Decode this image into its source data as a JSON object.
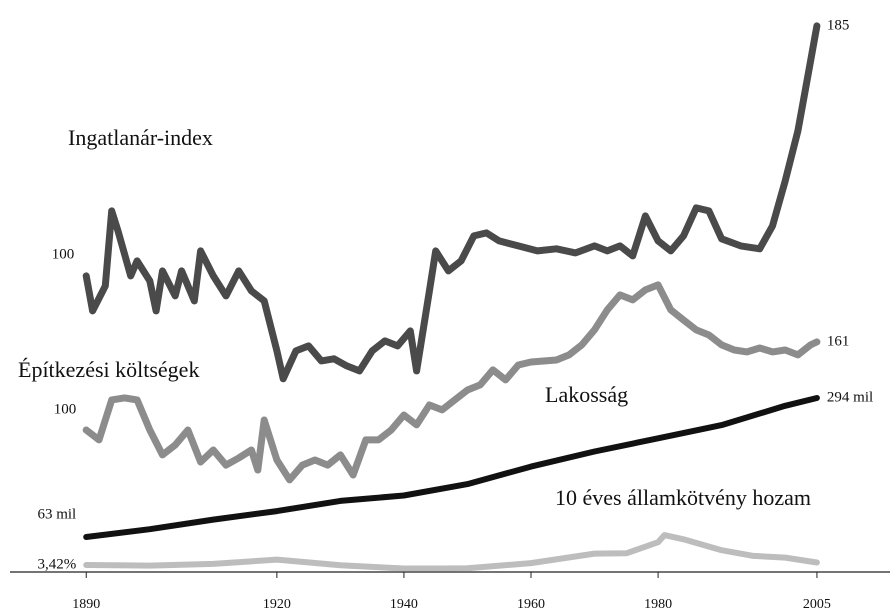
{
  "chart_data": {
    "type": "line",
    "xlim": [
      1878,
      2016.5
    ],
    "xticks": [
      1890,
      1920,
      1940,
      1960,
      1980,
      2005
    ],
    "series": [
      {
        "name": "Ingatlanár-index",
        "color": "#4a4a4a",
        "ylim": [
          0,
          187
        ],
        "x": [
          1890,
          1891,
          1893,
          1894,
          1895,
          1897,
          1898,
          1900,
          1901,
          1902,
          1904,
          1905,
          1907,
          1908,
          1910,
          1912,
          1914,
          1916,
          1918,
          1920,
          1921,
          1923,
          1925,
          1927,
          1929,
          1931,
          1933,
          1935,
          1937,
          1939,
          1941,
          1942,
          1944,
          1945,
          1947,
          1949,
          1951,
          1953,
          1955,
          1958,
          1961,
          1964,
          1967,
          1970,
          1972,
          1974,
          1976,
          1978,
          1980,
          1982,
          1984,
          1986,
          1988,
          1990,
          1993,
          1996,
          1998,
          2000,
          2002,
          2004,
          2005
        ],
        "values": [
          100,
          88.1,
          96.6,
          122.1,
          115.3,
          100,
          105.1,
          98.3,
          88.1,
          101.7,
          93.2,
          101.7,
          91.5,
          108.5,
          100,
          93.2,
          101.7,
          94.9,
          91.5,
          74.5,
          65.0,
          74.5,
          76.2,
          71.1,
          71.8,
          69.4,
          67.7,
          74.5,
          77.9,
          76.2,
          81.3,
          67.7,
          94.9,
          108.5,
          101.7,
          105.1,
          113.6,
          114.6,
          111.9,
          110.2,
          108.5,
          109.2,
          107.8,
          110.2,
          108.5,
          110.2,
          106.8,
          120.4,
          111.9,
          108.5,
          113.6,
          123.1,
          122.1,
          112.6,
          110.2,
          109.2,
          117.0,
          132.3,
          149.3,
          173.1,
          185
        ],
        "value_labels": [
          "100",
          null,
          null,
          null,
          null,
          null,
          null,
          null,
          null,
          null,
          null,
          null,
          null,
          null,
          null,
          null,
          null,
          null,
          null,
          null,
          null,
          null,
          null,
          null,
          null,
          null,
          null,
          null,
          null,
          null,
          null,
          null,
          null,
          null,
          null,
          null,
          null,
          null,
          null,
          null,
          null,
          null,
          null,
          null,
          null,
          null,
          null,
          null,
          null,
          null,
          null,
          null,
          null,
          null,
          null,
          null,
          null,
          null,
          null,
          null,
          "185"
        ]
      },
      {
        "name": "Építkezési költségek",
        "color": "#8c8c8c",
        "ylim": [
          3,
          384
        ],
        "x": [
          1890,
          1892,
          1894,
          1896,
          1898,
          1900,
          1902,
          1904,
          1906,
          1908,
          1910,
          1912,
          1914,
          1916,
          1917,
          1918,
          1920,
          1922,
          1924,
          1926,
          1928,
          1930,
          1932,
          1934,
          1936,
          1938,
          1940,
          1942,
          1944,
          1946,
          1948,
          1950,
          1952,
          1954,
          1956,
          1958,
          1960,
          1964,
          1966,
          1968,
          1970,
          1972,
          1974,
          1976,
          1978,
          1980,
          1982,
          1984,
          1986,
          1988,
          1990,
          1992,
          1994,
          1996,
          1998,
          2000,
          2002,
          2004,
          2005
        ],
        "values": [
          100,
          93.1,
          120.8,
          122.2,
          120.8,
          100,
          82.7,
          89.6,
          100,
          77.8,
          86.1,
          75.7,
          80.6,
          86.1,
          72.3,
          106.9,
          79.2,
          65.4,
          75.7,
          79.2,
          75.7,
          82.7,
          68.8,
          93.1,
          93.1,
          100,
          110.4,
          103.5,
          117.3,
          113.9,
          120.8,
          127.7,
          131.2,
          141.6,
          134.7,
          145.0,
          147.1,
          148.5,
          152.0,
          158.9,
          169.3,
          183.2,
          193.6,
          190.1,
          197.0,
          200.5,
          183.2,
          176.2,
          169.3,
          165.8,
          158.9,
          155.4,
          154.1,
          156.8,
          154.1,
          155.4,
          152.0,
          158.9,
          161
        ],
        "value_labels": [
          "100",
          null,
          null,
          null,
          null,
          null,
          null,
          null,
          null,
          null,
          null,
          null,
          null,
          null,
          null,
          null,
          null,
          null,
          null,
          null,
          null,
          null,
          null,
          null,
          null,
          null,
          null,
          null,
          null,
          null,
          null,
          null,
          null,
          null,
          null,
          null,
          null,
          null,
          null,
          null,
          null,
          null,
          null,
          null,
          null,
          null,
          null,
          null,
          null,
          null,
          null,
          null,
          null,
          null,
          null,
          null,
          null,
          null,
          "161"
        ]
      },
      {
        "name": "Lakosság",
        "color": "#111111",
        "ylim": [
          8.2,
          922
        ],
        "x": [
          1890,
          1900,
          1910,
          1920,
          1930,
          1940,
          1950,
          1960,
          1970,
          1980,
          1990,
          2000,
          2005
        ],
        "values": [
          63,
          76,
          92,
          106,
          123,
          132,
          151,
          180,
          205,
          227,
          249,
          281,
          294
        ],
        "value_labels": [
          "63 mil",
          null,
          null,
          null,
          null,
          null,
          null,
          null,
          null,
          null,
          null,
          null,
          "294 mil"
        ]
      },
      {
        "name": "10 éves államkötvény hozam",
        "color": "#bdbdbd",
        "ylim": [
          1.67,
          194.2
        ],
        "x": [
          1890,
          1900,
          1910,
          1920,
          1930,
          1940,
          1946,
          1950,
          1960,
          1970,
          1975,
          1980,
          1981,
          1984,
          1990,
          1995,
          2000,
          2005
        ],
        "values": [
          3.42,
          3.2,
          3.8,
          5.3,
          3.3,
          2.2,
          2.2,
          2.3,
          4.1,
          7.4,
          7.5,
          11.4,
          13.9,
          12.4,
          8.6,
          6.6,
          6.0,
          4.3
        ],
        "value_labels": [
          "3,42%",
          null,
          null,
          null,
          null,
          null,
          null,
          null,
          null,
          null,
          null,
          null,
          null,
          null,
          null,
          null,
          null,
          null
        ]
      }
    ]
  }
}
